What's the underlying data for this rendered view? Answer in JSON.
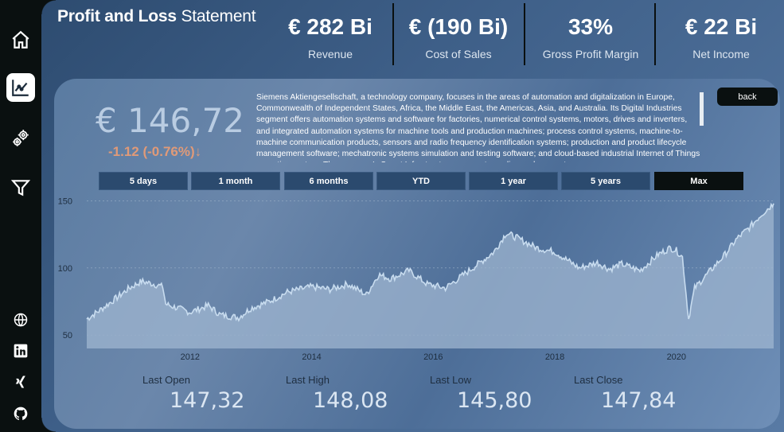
{
  "header": {
    "title_bold": "Profit and Loss",
    "title_light": " Statement"
  },
  "kpis": [
    {
      "value": "€ 282 Bi",
      "label": "Revenue"
    },
    {
      "value": "€ (190 Bi)",
      "label": "Cost of Sales"
    },
    {
      "value": "33%",
      "label": "Gross Profit Margin"
    },
    {
      "value": "€ 22 Bi",
      "label": "Net Income"
    }
  ],
  "sidebar": {
    "items": [
      {
        "icon": "home-icon"
      },
      {
        "icon": "chart-icon",
        "active": true
      },
      {
        "icon": "gears-icon"
      },
      {
        "icon": "filter-icon"
      },
      {
        "icon": "globe-icon"
      },
      {
        "icon": "linkedin-icon"
      },
      {
        "icon": "xing-icon"
      },
      {
        "icon": "github-icon"
      }
    ]
  },
  "stock": {
    "price": "€ 146,72",
    "change": "-1.12 (-0.76%)↓",
    "description": "Siemens Aktiengesellschaft, a technology company, focuses in the areas of automation and digitalization in Europe, Commonwealth of Independent States, Africa, the Middle East, the Americas, Asia, and Australia. Its Digital Industries segment offers automation systems and software for factories, numerical control systems, motors, drives and inverters, and integrated automation systems for machine tools and production machines; process control systems, machine-to-machine communication products, sensors and radio frequency identification systems; production and product lifecycle management software; mechatronic systems simulation and testing software; and cloud-based industrial Internet of Things operating system. The company's Smart Infrastructure segment supplies and connects energy",
    "back_label": "back",
    "ranges": [
      "5 days",
      "1 month",
      "6 months",
      "YTD",
      "1 year",
      "5 years",
      "Max"
    ],
    "active_range": "Max"
  },
  "stats": [
    {
      "label": "Last Open",
      "value": "147,32"
    },
    {
      "label": "Last High",
      "value": "148,08"
    },
    {
      "label": "Last Low",
      "value": "145,80"
    },
    {
      "label": "Last Close",
      "value": "147,84"
    }
  ],
  "chart_data": {
    "type": "area",
    "x_tick_labels": [
      "2012",
      "2014",
      "2016",
      "2018",
      "2020"
    ],
    "y_tick_labels": [
      "50",
      "100",
      "150"
    ],
    "ylim": [
      40,
      155
    ],
    "xlim": [
      2010.3,
      2021.6
    ],
    "grid": true,
    "line_color": "#c8dcef",
    "fill_color": "#9fb6d0",
    "x": [
      2010.3,
      2010.5,
      2010.8,
      2011.0,
      2011.2,
      2011.4,
      2011.55,
      2011.6,
      2011.8,
      2012.0,
      2012.3,
      2012.5,
      2012.8,
      2013.0,
      2013.3,
      2013.6,
      2014.0,
      2014.3,
      2014.6,
      2014.9,
      2015.1,
      2015.3,
      2015.6,
      2015.9,
      2016.2,
      2016.5,
      2016.8,
      2017.0,
      2017.2,
      2017.4,
      2017.7,
      2018.0,
      2018.2,
      2018.4,
      2018.7,
      2018.9,
      2019.1,
      2019.4,
      2019.7,
      2019.9,
      2020.0,
      2020.1,
      2020.2,
      2020.3,
      2020.5,
      2020.8,
      2021.0,
      2021.2,
      2021.4,
      2021.6
    ],
    "y": [
      62,
      68,
      78,
      85,
      90,
      88,
      86,
      73,
      70,
      67,
      72,
      65,
      63,
      70,
      75,
      82,
      86,
      84,
      88,
      80,
      95,
      92,
      98,
      88,
      85,
      95,
      105,
      112,
      126,
      122,
      115,
      112,
      106,
      100,
      104,
      99,
      103,
      98,
      110,
      115,
      113,
      108,
      62,
      85,
      95,
      110,
      122,
      130,
      140,
      148
    ]
  }
}
